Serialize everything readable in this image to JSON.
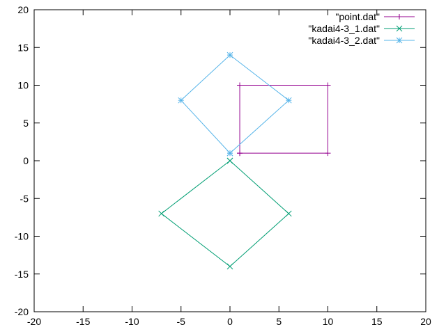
{
  "chart_data": {
    "type": "line",
    "xlim": [
      -20,
      20
    ],
    "ylim": [
      -20,
      20
    ],
    "x_ticks": [
      -20,
      -15,
      -10,
      -5,
      0,
      5,
      10,
      15,
      20
    ],
    "y_ticks": [
      -20,
      -15,
      -10,
      -5,
      0,
      5,
      10,
      15,
      20
    ],
    "grid": false,
    "legend_position": "top-right",
    "series": [
      {
        "name": "\"point.dat\"",
        "color": "#94008f",
        "marker": "plus",
        "points": [
          [
            1,
            1
          ],
          [
            10,
            1
          ],
          [
            10,
            10
          ],
          [
            1,
            10
          ],
          [
            1,
            1
          ]
        ]
      },
      {
        "name": "\"kadai4-3_1.dat\"",
        "color": "#009e73",
        "marker": "cross",
        "points": [
          [
            0,
            0
          ],
          [
            6,
            -7
          ],
          [
            0,
            -14
          ],
          [
            -7,
            -7
          ],
          [
            0,
            0
          ]
        ]
      },
      {
        "name": "\"kadai4-3_2.dat\"",
        "color": "#56b4e9",
        "marker": "star",
        "points": [
          [
            0,
            1
          ],
          [
            6,
            8
          ],
          [
            0,
            14
          ],
          [
            -5,
            8
          ],
          [
            0,
            1
          ]
        ]
      }
    ]
  }
}
